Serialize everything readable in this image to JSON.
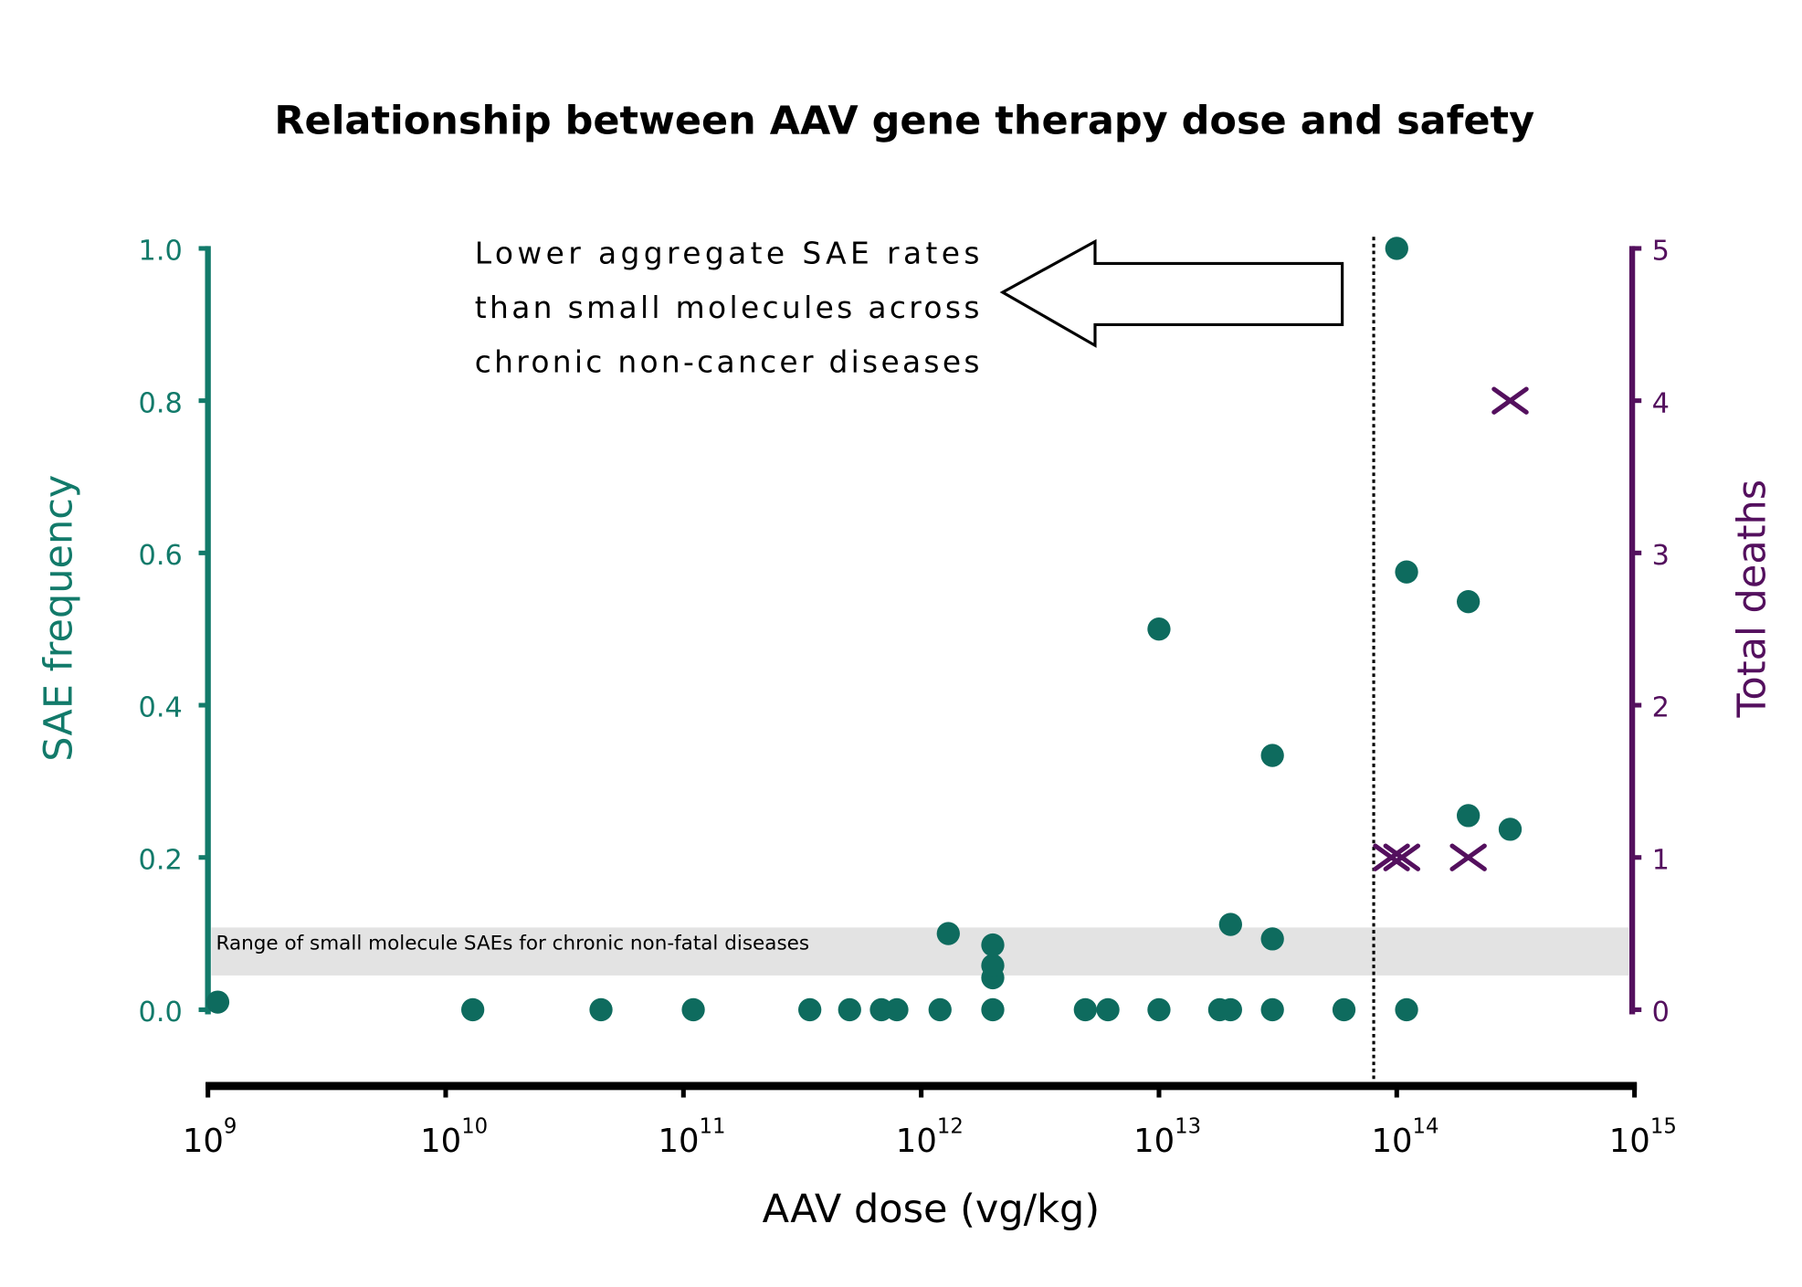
{
  "chart_data": {
    "type": "scatter",
    "title": "Relationship between AAV gene therapy dose and safety",
    "xlabel": "AAV dose (vg/kg)",
    "ylabel": "SAE frequency",
    "ylabel_right": "Total deaths",
    "xscale": "log",
    "xlim": [
      1000000000.0,
      1000000000000000.0
    ],
    "ylim": [
      0,
      1.0
    ],
    "ylim_right": [
      0,
      5
    ],
    "grid": false,
    "x_ticks": [
      {
        "base": "10",
        "exp": "9"
      },
      {
        "base": "10",
        "exp": "10"
      },
      {
        "base": "10",
        "exp": "11"
      },
      {
        "base": "10",
        "exp": "12"
      },
      {
        "base": "10",
        "exp": "13"
      },
      {
        "base": "10",
        "exp": "14"
      },
      {
        "base": "10",
        "exp": "15"
      }
    ],
    "y_ticks": [
      "0.0",
      "0.2",
      "0.4",
      "0.6",
      "0.8",
      "1.0"
    ],
    "y_ticks_right": [
      "0",
      "1",
      "2",
      "3",
      "4",
      "5"
    ],
    "colors": {
      "sae": "#0e6b5e",
      "left_axis": "#127a6a",
      "deaths": "#54105e",
      "band": "#e3e3e3"
    },
    "series": [
      {
        "marker": "circle",
        "axis": "left",
        "points": [
          [
            1100000000.0,
            0.01
          ],
          [
            13000000000.0,
            0.0
          ],
          [
            45000000000.0,
            0.0
          ],
          [
            110000000000.0,
            0.0
          ],
          [
            340000000000.0,
            0.0
          ],
          [
            500000000000.0,
            0.0
          ],
          [
            680000000000.0,
            0.0
          ],
          [
            790000000000.0,
            0.0
          ],
          [
            1200000000000.0,
            0.0
          ],
          [
            2000000000000.0,
            0.0
          ],
          [
            2000000000000.0,
            0.042
          ],
          [
            2000000000000.0,
            0.058
          ],
          [
            2000000000000.0,
            0.085
          ],
          [
            1300000000000.0,
            0.1
          ],
          [
            4900000000000.0,
            0.0
          ],
          [
            6100000000000.0,
            0.0
          ],
          [
            10000000000000.0,
            0.0
          ],
          [
            10000000000000.0,
            0.5
          ],
          [
            18000000000000.0,
            0.0
          ],
          [
            20000000000000.0,
            0.0
          ],
          [
            20000000000000.0,
            0.112
          ],
          [
            30000000000000.0,
            0.0
          ],
          [
            30000000000000.0,
            0.093
          ],
          [
            30000000000000.0,
            0.334
          ],
          [
            60000000000000.0,
            0.0
          ],
          [
            110000000000000.0,
            0.0
          ],
          [
            110000000000000.0,
            0.575
          ],
          [
            100000000000000.0,
            1.0
          ],
          [
            200000000000000.0,
            0.536
          ],
          [
            200000000000000.0,
            0.255
          ],
          [
            300000000000000.0,
            0.237
          ]
        ]
      },
      {
        "marker": "x",
        "axis": "right",
        "points": [
          [
            95000000000000.0,
            1
          ],
          [
            105000000000000.0,
            1
          ],
          [
            200000000000000.0,
            1
          ],
          [
            300000000000000.0,
            4
          ]
        ]
      }
    ],
    "reference_line": {
      "x": 80000000000000.0,
      "style": "dotted"
    },
    "band": {
      "y_range": [
        0.045,
        0.108
      ],
      "label": "Range of small molecule SAEs for chronic non-fatal diseases"
    },
    "annotation": {
      "lines": [
        "Lower aggregate SAE rates",
        "than small molecules across",
        "chronic non-cancer diseases"
      ],
      "arrow_direction": "left"
    }
  }
}
